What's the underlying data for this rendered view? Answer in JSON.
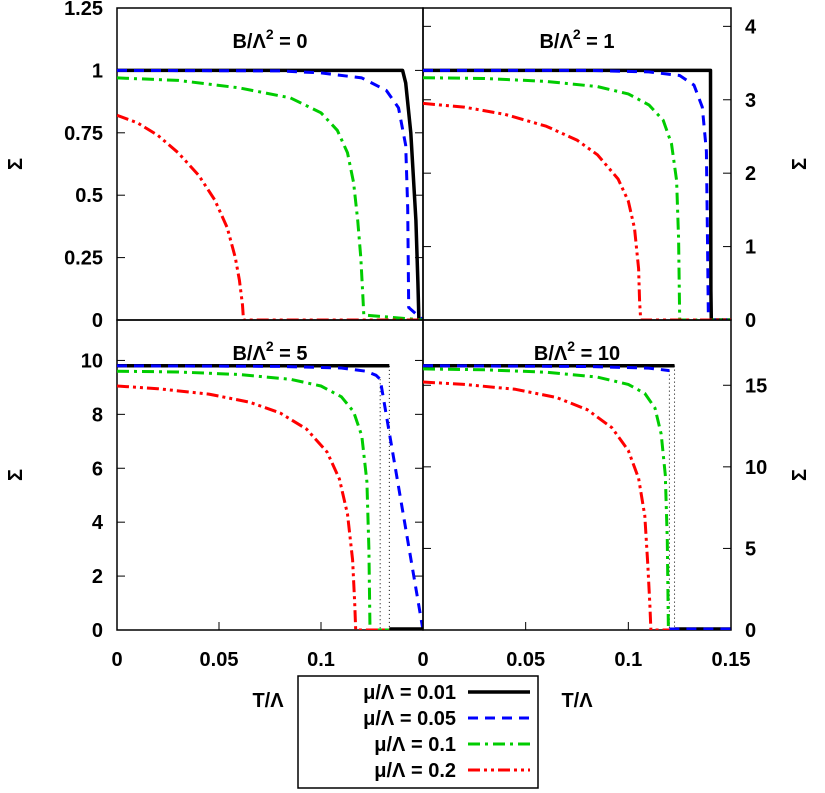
{
  "chart_data": [
    {
      "type": "line",
      "title": "B/Λ² = 0",
      "title_parts": {
        "base": "B/Λ",
        "sup": "2",
        "tail": " = 0"
      },
      "xlabel": "T/Λ",
      "ylabel": "Σ",
      "xlim": [
        0,
        0.15
      ],
      "ylim": [
        0,
        1.25
      ],
      "xticks": [],
      "yticks": [
        {
          "value": 0,
          "label": "0"
        },
        {
          "value": 0.25,
          "label": "0.25"
        },
        {
          "value": 0.5,
          "label": "0.5"
        },
        {
          "value": 0.75,
          "label": "0.75"
        },
        {
          "value": 1,
          "label": "1"
        },
        {
          "value": 1.25,
          "label": "1.25"
        }
      ],
      "series": [
        {
          "name": "μ/Λ = 0.01",
          "x": [
            0,
            0.14,
            0.1415,
            0.144,
            0.1465,
            0.1475,
            0.148,
            0.149,
            0.15
          ],
          "y": [
            1,
            1,
            0.95,
            0.75,
            0.4,
            0.15,
            0,
            0,
            0
          ]
        },
        {
          "name": "μ/Λ = 0.05",
          "x": [
            0,
            0.08,
            0.1,
            0.12,
            0.132,
            0.138,
            0.1415,
            0.1425,
            0.143,
            0.15
          ],
          "y": [
            1,
            0.998,
            0.99,
            0.97,
            0.92,
            0.85,
            0.7,
            0.45,
            0.05,
            0
          ]
        },
        {
          "name": "μ/Λ = 0.1",
          "x": [
            0,
            0.03,
            0.06,
            0.085,
            0.1,
            0.108,
            0.113,
            0.116,
            0.118,
            0.1195,
            0.1205,
            0.121,
            0.15
          ],
          "y": [
            0.97,
            0.96,
            0.93,
            0.89,
            0.83,
            0.76,
            0.67,
            0.55,
            0.4,
            0.25,
            0.1,
            0.02,
            0
          ]
        },
        {
          "name": "μ/Λ = 0.2",
          "x": [
            0,
            0.01,
            0.02,
            0.03,
            0.04,
            0.048,
            0.054,
            0.058,
            0.06,
            0.0615,
            0.062,
            0.15
          ],
          "y": [
            0.82,
            0.79,
            0.74,
            0.67,
            0.58,
            0.48,
            0.37,
            0.25,
            0.16,
            0.06,
            0,
            0
          ]
        }
      ]
    },
    {
      "type": "line",
      "title": "B/Λ² = 1",
      "title_parts": {
        "base": "B/Λ",
        "sup": "2",
        "tail": " = 1"
      },
      "xlabel": "T/Λ",
      "ylabel": "Σ",
      "xlim": [
        0,
        0.15
      ],
      "ylim": [
        0,
        4.25
      ],
      "y_axis_side": "right",
      "xticks": [],
      "yticks": [
        {
          "value": 0,
          "label": "0"
        },
        {
          "value": 1,
          "label": "1"
        },
        {
          "value": 2,
          "label": "2"
        },
        {
          "value": 3,
          "label": "3"
        },
        {
          "value": 4,
          "label": "4"
        }
      ],
      "series": [
        {
          "name": "μ/Λ = 0.01",
          "x": [
            0,
            0.14,
            0.1402,
            0.1404,
            0.15
          ],
          "y": [
            3.4,
            3.4,
            0.4,
            0,
            0
          ],
          "dotted_jump_at": 0.14
        },
        {
          "name": "μ/Λ = 0.05",
          "x": [
            0,
            0.08,
            0.11,
            0.125,
            0.132,
            0.136,
            0.138,
            0.1385,
            0.139,
            0.15
          ],
          "y": [
            3.4,
            3.4,
            3.38,
            3.33,
            3.2,
            2.9,
            2.3,
            1.2,
            0,
            0
          ]
        },
        {
          "name": "μ/Λ = 0.1",
          "x": [
            0,
            0.03,
            0.06,
            0.085,
            0.1,
            0.11,
            0.117,
            0.121,
            0.1235,
            0.1245,
            0.125,
            0.15
          ],
          "y": [
            3.3,
            3.29,
            3.25,
            3.18,
            3.08,
            2.93,
            2.72,
            2.4,
            1.9,
            1.1,
            0,
            0
          ]
        },
        {
          "name": "μ/Λ = 0.2",
          "x": [
            0,
            0.02,
            0.04,
            0.06,
            0.075,
            0.085,
            0.095,
            0.1,
            0.103,
            0.105,
            0.1055,
            0.106,
            0.15
          ],
          "y": [
            2.95,
            2.9,
            2.8,
            2.64,
            2.45,
            2.25,
            1.92,
            1.62,
            1.25,
            0.7,
            0.25,
            0,
            0
          ]
        }
      ]
    },
    {
      "type": "line",
      "title": "B/Λ² = 5",
      "title_parts": {
        "base": "B/Λ",
        "sup": "2",
        "tail": " = 5"
      },
      "xlabel": "T/Λ",
      "ylabel": "Σ",
      "xlim": [
        0,
        0.15
      ],
      "ylim": [
        0,
        11.5
      ],
      "xticks": [
        {
          "value": 0,
          "label": "0"
        },
        {
          "value": 0.05,
          "label": "0.05"
        },
        {
          "value": 0.1,
          "label": "0.1"
        }
      ],
      "yticks": [
        {
          "value": 0,
          "label": "0"
        },
        {
          "value": 2,
          "label": "2"
        },
        {
          "value": 4,
          "label": "4"
        },
        {
          "value": 6,
          "label": "6"
        },
        {
          "value": 8,
          "label": "8"
        },
        {
          "value": 10,
          "label": "10"
        }
      ],
      "series": [
        {
          "name": "μ/Λ = 0.01",
          "x": [
            0,
            0.1335
          ],
          "y": [
            9.8,
            9.8
          ],
          "dotted_jump_at": 0.1335
        },
        {
          "name": "μ/Λ = 0.05",
          "x": [
            0,
            0.08,
            0.11,
            0.122,
            0.127,
            0.129,
            0.15
          ],
          "y": [
            9.8,
            9.78,
            9.72,
            9.6,
            9.45,
            9.3,
            0
          ],
          "dotted_jump_at": 0.129
        },
        {
          "name": "μ/Λ = 0.1",
          "x": [
            0,
            0.03,
            0.06,
            0.085,
            0.1,
            0.11,
            0.116,
            0.12,
            0.1225,
            0.1235,
            0.124,
            0.15
          ],
          "y": [
            9.6,
            9.57,
            9.48,
            9.3,
            9.05,
            8.65,
            8.1,
            7.2,
            5.5,
            3.0,
            0,
            0
          ]
        },
        {
          "name": "μ/Λ = 0.2",
          "x": [
            0,
            0.02,
            0.045,
            0.065,
            0.08,
            0.093,
            0.103,
            0.109,
            0.113,
            0.1155,
            0.1165,
            0.117,
            0.15
          ],
          "y": [
            9.05,
            8.95,
            8.75,
            8.45,
            8.05,
            7.45,
            6.6,
            5.6,
            4.3,
            2.6,
            1.0,
            0,
            0
          ]
        }
      ]
    },
    {
      "type": "line",
      "title": "B/Λ² = 10",
      "title_parts": {
        "base": "B/Λ",
        "sup": "2",
        "tail": " = 10"
      },
      "xlabel": "T/Λ",
      "ylabel": "Σ",
      "xlim": [
        0,
        0.15
      ],
      "ylim": [
        0,
        19
      ],
      "y_axis_side": "right",
      "xticks": [
        {
          "value": 0,
          "label": "0"
        },
        {
          "value": 0.05,
          "label": "0.05"
        },
        {
          "value": 0.1,
          "label": "0.1"
        },
        {
          "value": 0.15,
          "label": "0.15"
        }
      ],
      "yticks": [
        {
          "value": 0,
          "label": "0"
        },
        {
          "value": 5,
          "label": "5"
        },
        {
          "value": 10,
          "label": "10"
        },
        {
          "value": 15,
          "label": "15"
        }
      ],
      "series": [
        {
          "name": "μ/Λ = 0.01",
          "x": [
            0,
            0.1225
          ],
          "y": [
            16.2,
            16.2
          ],
          "dotted_jump_at": 0.1225
        },
        {
          "name": "μ/Λ = 0.05",
          "x": [
            0,
            0.08,
            0.11,
            0.12
          ],
          "y": [
            16.2,
            16.15,
            16.05,
            15.9
          ],
          "dotted_jump_at": 0.12
        },
        {
          "name": "μ/Λ = 0.1",
          "x": [
            0,
            0.03,
            0.06,
            0.085,
            0.1,
            0.108,
            0.113,
            0.116,
            0.118,
            0.119,
            0.1195,
            0.15
          ],
          "y": [
            16.0,
            15.95,
            15.8,
            15.5,
            15.05,
            14.5,
            13.6,
            12.0,
            9.5,
            5.5,
            0,
            0
          ]
        },
        {
          "name": "μ/Λ = 0.2",
          "x": [
            0,
            0.02,
            0.045,
            0.065,
            0.08,
            0.092,
            0.1,
            0.105,
            0.108,
            0.1095,
            0.1105,
            0.111,
            0.15
          ],
          "y": [
            15.2,
            15.05,
            14.75,
            14.25,
            13.5,
            12.4,
            11.0,
            9.3,
            7.0,
            4.0,
            1.5,
            0,
            0
          ]
        }
      ]
    }
  ],
  "styles": {
    "μ/Λ = 0.01": {
      "color": "#000000",
      "dash": "none",
      "width": 3.5
    },
    "μ/Λ = 0.05": {
      "color": "#0000ff",
      "dash": "10 7",
      "width": 3
    },
    "μ/Λ = 0.1": {
      "color": "#00cc00",
      "dash": "12 5 3 5",
      "width": 3
    },
    "μ/Λ = 0.2": {
      "color": "#ff0000",
      "dash": "12 4 3 4 3 4",
      "width": 3
    }
  },
  "legend": {
    "placement": "bottom-center",
    "entries": [
      "μ/Λ = 0.01",
      "μ/Λ = 0.05",
      "μ/Λ = 0.1",
      "μ/Λ = 0.2"
    ]
  },
  "xlabel_left": "T/Λ",
  "xlabel_right": "T/Λ"
}
